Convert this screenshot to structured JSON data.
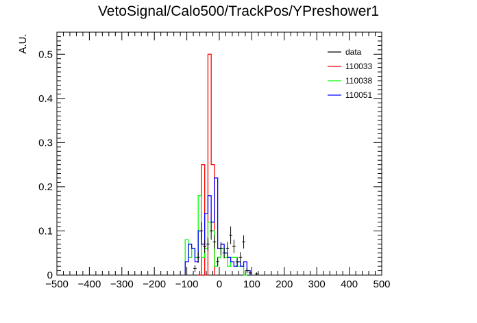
{
  "chart_data": {
    "type": "histogram",
    "title": "VetoSignal/Calo500/TrackPos/YPreshower1",
    "xlabel": "",
    "ylabel": "A.U.",
    "xlim": [
      -500,
      500
    ],
    "ylim": [
      0,
      0.55
    ],
    "x_ticks": [
      -500,
      -400,
      -300,
      -200,
      -100,
      0,
      100,
      200,
      300,
      400,
      500
    ],
    "y_ticks": [
      0,
      0.1,
      0.2,
      0.3,
      0.4,
      0.5
    ],
    "x_tick_labels": [
      "−500",
      "−400",
      "−300",
      "−200",
      "−100",
      "0",
      "100",
      "200",
      "300",
      "400",
      "500"
    ],
    "y_tick_labels": [
      "0",
      "0.1",
      "0.2",
      "0.3",
      "0.4",
      "0.5"
    ],
    "legend_position": "top-right",
    "bin_width": 10,
    "series": [
      {
        "name": "data",
        "color": "#000000",
        "kind": "points",
        "x": [
          -75,
          -65,
          -55,
          -45,
          -35,
          -25,
          -15,
          -5,
          5,
          15,
          25,
          35,
          45,
          55,
          65,
          75,
          85,
          95,
          115
        ],
        "y": [
          0.015,
          0.04,
          0.1,
          0.065,
          0.07,
          0.1,
          0.075,
          0.03,
          0.06,
          0.05,
          0.06,
          0.09,
          0.065,
          0.03,
          0.04,
          0.075,
          0.01,
          0.005,
          0.003
        ],
        "err": [
          0.008,
          0.012,
          0.02,
          0.015,
          0.015,
          0.02,
          0.015,
          0.01,
          0.015,
          0.012,
          0.015,
          0.02,
          0.015,
          0.01,
          0.012,
          0.015,
          0.006,
          0.004,
          0.003
        ]
      },
      {
        "name": "110033",
        "color": "#ff0000",
        "kind": "step",
        "x": [
          -60,
          -50,
          -40,
          -30,
          -20
        ],
        "y": [
          0.0,
          0.25,
          0.0,
          0.5,
          0.25
        ]
      },
      {
        "name": "110038",
        "color": "#00ff00",
        "kind": "step",
        "x": [
          -100,
          -90,
          -80,
          -70,
          -60,
          -50,
          -40,
          -30,
          -20,
          -10,
          0,
          10,
          20,
          30,
          40,
          50,
          60,
          70,
          80
        ],
        "y": [
          0.08,
          0.04,
          0.06,
          0.04,
          0.18,
          0.04,
          0.06,
          0.12,
          0.1,
          0.02,
          0.04,
          0.06,
          0.04,
          0.02,
          0.04,
          0.04,
          0.02,
          0.02,
          0.0
        ]
      },
      {
        "name": "110051",
        "color": "#0000ff",
        "kind": "step",
        "x": [
          -100,
          -90,
          -80,
          -70,
          -60,
          -50,
          -40,
          -30,
          -20,
          -10,
          0,
          10,
          20,
          30,
          40,
          50,
          60,
          70,
          80,
          90
        ],
        "y": [
          0.03,
          0.07,
          0.06,
          0.03,
          0.1,
          0.07,
          0.14,
          0.18,
          0.12,
          0.22,
          0.06,
          0.07,
          0.05,
          0.04,
          0.03,
          0.02,
          0.03,
          0.02,
          0.03,
          0.01
        ]
      }
    ]
  }
}
